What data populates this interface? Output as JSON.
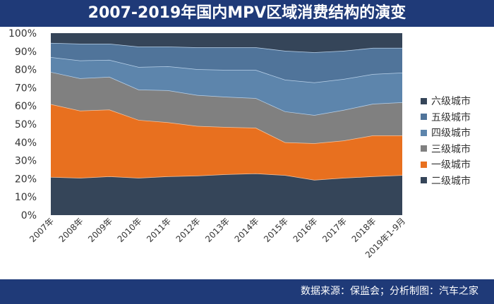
{
  "chart_data": {
    "type": "area",
    "stacked": true,
    "title": "2007-2019年国内MPV区域消费结构的演变",
    "source": "数据来源：保监会；分析制图：汽车之家",
    "categories": [
      "2007年",
      "2008年",
      "2009年",
      "2010年",
      "2011年",
      "2012年",
      "2013年",
      "2014年",
      "2015年",
      "2016年",
      "2017年",
      "2018年",
      "2019年1-9月"
    ],
    "yticks": [
      "0%",
      "10%",
      "20%",
      "30%",
      "40%",
      "50%",
      "60%",
      "70%",
      "80%",
      "90%",
      "100%"
    ],
    "ylim": [
      0,
      100
    ],
    "legend_position": "right",
    "series": [
      {
        "name": "二级城市",
        "color": "#354559",
        "values": [
          21,
          20.5,
          21.3,
          20.5,
          21.3,
          21.7,
          22.5,
          22.9,
          22,
          19.4,
          20.5,
          21.3,
          22
        ]
      },
      {
        "name": "一级城市",
        "color": "#e8701f",
        "values": [
          40,
          36.9,
          36.7,
          31.8,
          29.7,
          27.3,
          25.9,
          25.1,
          18,
          20.1,
          20.5,
          22.5,
          21.8
        ]
      },
      {
        "name": "三级城市",
        "color": "#808080",
        "values": [
          17.7,
          17.8,
          18,
          16.7,
          17.6,
          17,
          16.6,
          16.3,
          17,
          15.5,
          16.8,
          17.4,
          18.2
        ]
      },
      {
        "name": "四级城市",
        "color": "#5d85ac",
        "values": [
          8.1,
          9.8,
          9.3,
          12.4,
          13.2,
          14.2,
          14.8,
          15.5,
          17.4,
          17.9,
          17,
          16.3,
          16.3
        ]
      },
      {
        "name": "五级城市",
        "color": "#50749a",
        "values": [
          7.8,
          9.2,
          8.9,
          11.2,
          10.8,
          12,
          12.4,
          12.4,
          15.9,
          16.6,
          15.5,
          14.4,
          13.6
        ]
      },
      {
        "name": "六级城市",
        "color": "#354559",
        "values": [
          5.4,
          5.8,
          5.8,
          7.4,
          7.4,
          7.8,
          7.8,
          7.8,
          9.7,
          10.5,
          9.7,
          8.1,
          8.1
        ]
      }
    ]
  }
}
